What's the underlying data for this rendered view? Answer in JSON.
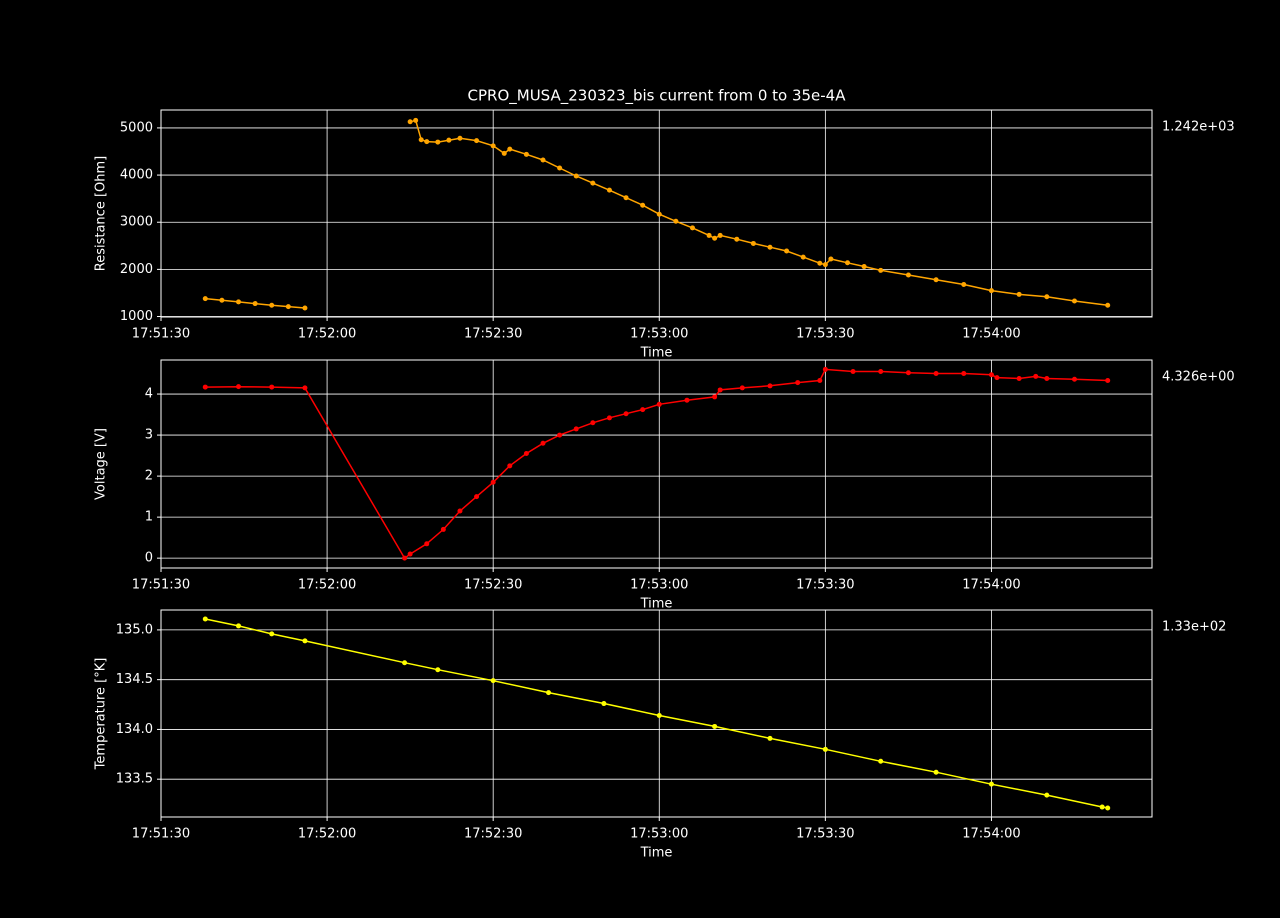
{
  "chart_data": [
    {
      "type": "line",
      "title": "CPRO_MUSA_230323_bis current from 0 to 35e-4A",
      "xlabel": "Time",
      "ylabel": "Resistance [Ohm]",
      "annotation": "1.242e+03",
      "color": "#ffa500",
      "grid": true,
      "x": [
        "17:51:38",
        "17:51:41",
        "17:51:44",
        "17:51:47",
        "17:51:50",
        "17:51:53",
        "17:51:56",
        "17:52:05",
        "17:52:15",
        "17:52:16",
        "17:52:17",
        "17:52:18",
        "17:52:20",
        "17:52:22",
        "17:52:24",
        "17:52:27",
        "17:52:30",
        "17:52:32",
        "17:52:33",
        "17:52:36",
        "17:52:39",
        "17:52:42",
        "17:52:45",
        "17:52:48",
        "17:52:51",
        "17:52:54",
        "17:52:57",
        "17:53:00",
        "17:53:03",
        "17:53:06",
        "17:53:09",
        "17:53:10",
        "17:53:11",
        "17:53:14",
        "17:53:17",
        "17:53:20",
        "17:53:23",
        "17:53:26",
        "17:53:29",
        "17:53:30",
        "17:53:31",
        "17:53:34",
        "17:53:37",
        "17:53:40",
        "17:53:45",
        "17:53:50",
        "17:53:55",
        "17:54:00",
        "17:54:05",
        "17:54:10",
        "17:54:15",
        "17:54:21"
      ],
      "values": [
        1380,
        1345,
        1310,
        1275,
        1240,
        1210,
        1180,
        null,
        5130,
        5160,
        4750,
        4710,
        4700,
        4740,
        4780,
        4730,
        4620,
        4460,
        4550,
        4440,
        4320,
        4150,
        3980,
        3830,
        3680,
        3520,
        3360,
        3170,
        3020,
        2880,
        2720,
        2660,
        2720,
        2640,
        2550,
        2470,
        2390,
        2260,
        2130,
        2100,
        2220,
        2140,
        2060,
        1980,
        1880,
        1780,
        1680,
        1550,
        1470,
        1420,
        1330,
        1240
      ],
      "xlim": [
        "17:51:30",
        "17:54:29"
      ],
      "xticks": [
        "17:51:30",
        "17:52:00",
        "17:52:30",
        "17:53:00",
        "17:53:30",
        "17:54:00"
      ],
      "ylim": [
        990,
        5380
      ],
      "yticks": [
        1000,
        2000,
        3000,
        4000,
        5000
      ]
    },
    {
      "type": "line",
      "xlabel": "Time",
      "ylabel": "Voltage [V]",
      "annotation": "4.326e+00",
      "color": "#ff0000",
      "grid": true,
      "x": [
        "17:51:38",
        "17:51:44",
        "17:51:50",
        "17:51:56",
        "17:52:14",
        "17:52:15",
        "17:52:18",
        "17:52:21",
        "17:52:24",
        "17:52:27",
        "17:52:30",
        "17:52:33",
        "17:52:36",
        "17:52:39",
        "17:52:42",
        "17:52:45",
        "17:52:48",
        "17:52:51",
        "17:52:54",
        "17:52:57",
        "17:53:00",
        "17:53:05",
        "17:53:10",
        "17:53:11",
        "17:53:15",
        "17:53:20",
        "17:53:25",
        "17:53:29",
        "17:53:30",
        "17:53:35",
        "17:53:40",
        "17:53:45",
        "17:53:50",
        "17:53:55",
        "17:54:00",
        "17:54:01",
        "17:54:05",
        "17:54:08",
        "17:54:10",
        "17:54:15",
        "17:54:21"
      ],
      "values": [
        4.17,
        4.18,
        4.17,
        4.15,
        0.0,
        0.1,
        0.35,
        0.7,
        1.15,
        1.5,
        1.85,
        2.25,
        2.55,
        2.8,
        3.0,
        3.15,
        3.3,
        3.42,
        3.52,
        3.62,
        3.75,
        3.85,
        3.93,
        4.1,
        4.15,
        4.2,
        4.28,
        4.33,
        4.6,
        4.55,
        4.55,
        4.52,
        4.5,
        4.5,
        4.47,
        4.4,
        4.38,
        4.43,
        4.38,
        4.36,
        4.33
      ],
      "xlim": [
        "17:51:30",
        "17:54:29"
      ],
      "xticks": [
        "17:51:30",
        "17:52:00",
        "17:52:30",
        "17:53:00",
        "17:53:30",
        "17:54:00"
      ],
      "ylim": [
        -0.24,
        4.83
      ],
      "yticks": [
        0,
        1,
        2,
        3,
        4
      ]
    },
    {
      "type": "line",
      "xlabel": "Time",
      "ylabel": "Temperature [°K]",
      "annotation": "1.33e+02",
      "color": "#ffff00",
      "grid": true,
      "x": [
        "17:51:38",
        "17:51:44",
        "17:51:50",
        "17:51:56",
        "17:52:14",
        "17:52:20",
        "17:52:30",
        "17:52:40",
        "17:52:50",
        "17:53:00",
        "17:53:10",
        "17:53:20",
        "17:53:30",
        "17:53:40",
        "17:53:50",
        "17:54:00",
        "17:54:10",
        "17:54:20",
        "17:54:21"
      ],
      "values": [
        135.11,
        135.04,
        134.96,
        134.89,
        134.67,
        134.6,
        134.49,
        134.37,
        134.26,
        134.14,
        134.03,
        133.91,
        133.8,
        133.68,
        133.57,
        133.45,
        133.34,
        133.22,
        133.21
      ],
      "xlim": [
        "17:51:30",
        "17:54:29"
      ],
      "xticks": [
        "17:51:30",
        "17:52:00",
        "17:52:30",
        "17:53:00",
        "17:53:30",
        "17:54:00"
      ],
      "ylim": [
        133.12,
        135.2
      ],
      "yticks": [
        133.5,
        {
          "value": 134,
          "label": "134.0"
        },
        134.5,
        {
          "value": 135,
          "label": "135.0"
        }
      ]
    }
  ]
}
